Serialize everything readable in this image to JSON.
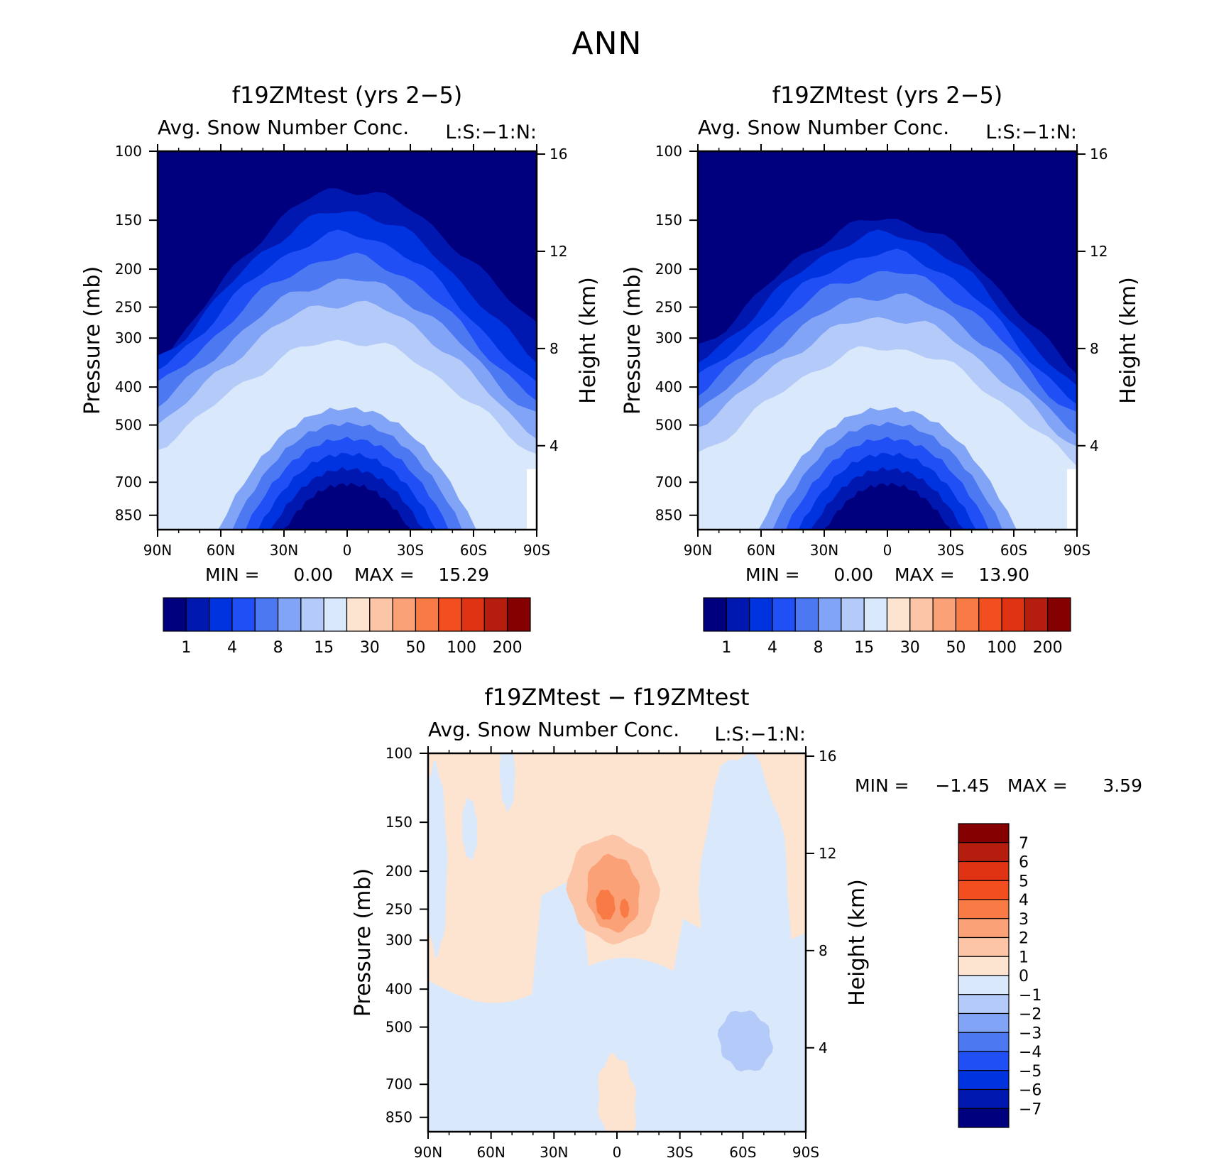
{
  "title": "ANN",
  "chart_data": [
    {
      "type": "heatmap",
      "title": "f19ZMtest (yrs 2−5)",
      "subtitle": "Avg. Snow Number Conc.",
      "units": "L:S:−1:N:",
      "ylabel": "Pressure (mb)",
      "ylabel_right": "Height (km)",
      "x_ticks": [
        "90N",
        "60N",
        "30N",
        "0",
        "30S",
        "60S",
        "90S"
      ],
      "y_ticks": [
        "100",
        "150",
        "200",
        "250",
        "300",
        "400",
        "500",
        "700",
        "850"
      ],
      "y_ticks_right": [
        "16",
        "12",
        "8",
        "4"
      ],
      "stats": {
        "min_label": "MIN =",
        "min": "0.00",
        "max_label": "MAX =",
        "max": "15.29"
      },
      "colorbar": {
        "colors": [
          "#00007f",
          "#0018b0",
          "#0033e0",
          "#1f4ff5",
          "#4c78f2",
          "#82a4f7",
          "#b4caf9",
          "#d9e8fb",
          "#fde4d1",
          "#fcc5a7",
          "#fba177",
          "#f87a44",
          "#f34e1f",
          "#e03313",
          "#b51e0e",
          "#850000"
        ],
        "labels": [
          "1",
          "4",
          "8",
          "15",
          "30",
          "50",
          "100",
          "200"
        ]
      },
      "contours": [
        {
          "level": 1,
          "color": "#0018b0"
        },
        {
          "level": 2,
          "color": "#0033e0"
        },
        {
          "level": 3,
          "color": "#1f4ff5"
        },
        {
          "level": 4,
          "color": "#4c78f2"
        },
        {
          "level": 5,
          "color": "#82a4f7"
        },
        {
          "level": 6,
          "color": "#b4caf9"
        },
        {
          "level": 7,
          "color": "#d9e8fb"
        }
      ]
    },
    {
      "type": "heatmap",
      "title": "f19ZMtest (yrs 2−5)",
      "subtitle": "Avg. Snow Number Conc.",
      "units": "L:S:−1:N:",
      "ylabel": "Pressure (mb)",
      "ylabel_right": "Height (km)",
      "x_ticks": [
        "90N",
        "60N",
        "30N",
        "0",
        "30S",
        "60S",
        "90S"
      ],
      "y_ticks": [
        "100",
        "150",
        "200",
        "250",
        "300",
        "400",
        "500",
        "700",
        "850"
      ],
      "y_ticks_right": [
        "16",
        "12",
        "8",
        "4"
      ],
      "stats": {
        "min_label": "MIN =",
        "min": "0.00",
        "max_label": "MAX =",
        "max": "13.90"
      },
      "colorbar": {
        "colors": [
          "#00007f",
          "#0018b0",
          "#0033e0",
          "#1f4ff5",
          "#4c78f2",
          "#82a4f7",
          "#b4caf9",
          "#d9e8fb",
          "#fde4d1",
          "#fcc5a7",
          "#fba177",
          "#f87a44",
          "#f34e1f",
          "#e03313",
          "#b51e0e",
          "#850000"
        ],
        "labels": [
          "1",
          "4",
          "8",
          "15",
          "30",
          "50",
          "100",
          "200"
        ]
      }
    },
    {
      "type": "heatmap",
      "title": "f19ZMtest − f19ZMtest",
      "subtitle": "Avg. Snow Number Conc.",
      "units": "L:S:−1:N:",
      "ylabel": "Pressure (mb)",
      "ylabel_right": "Height (km)",
      "x_ticks": [
        "90N",
        "60N",
        "30N",
        "0",
        "30S",
        "60S",
        "90S"
      ],
      "y_ticks": [
        "100",
        "150",
        "200",
        "250",
        "300",
        "400",
        "500",
        "700",
        "850"
      ],
      "y_ticks_right": [
        "16",
        "12",
        "8",
        "4"
      ],
      "stats": {
        "min_label": "MIN =",
        "min": "−1.45",
        "max_label": "MAX =",
        "max": "3.59"
      },
      "colorbar": {
        "colors": [
          "#850000",
          "#b51e0e",
          "#e03313",
          "#f34e1f",
          "#f87a44",
          "#fba177",
          "#fcc5a7",
          "#fde4d1",
          "#d9e8fb",
          "#b4caf9",
          "#82a4f7",
          "#4c78f2",
          "#1f4ff5",
          "#0033e0",
          "#0018b0",
          "#00007f"
        ],
        "labels": [
          "7",
          "6",
          "5",
          "4",
          "3",
          "2",
          "1",
          "0",
          "−1",
          "−2",
          "−3",
          "−4",
          "−5",
          "−6",
          "−7"
        ]
      }
    }
  ]
}
